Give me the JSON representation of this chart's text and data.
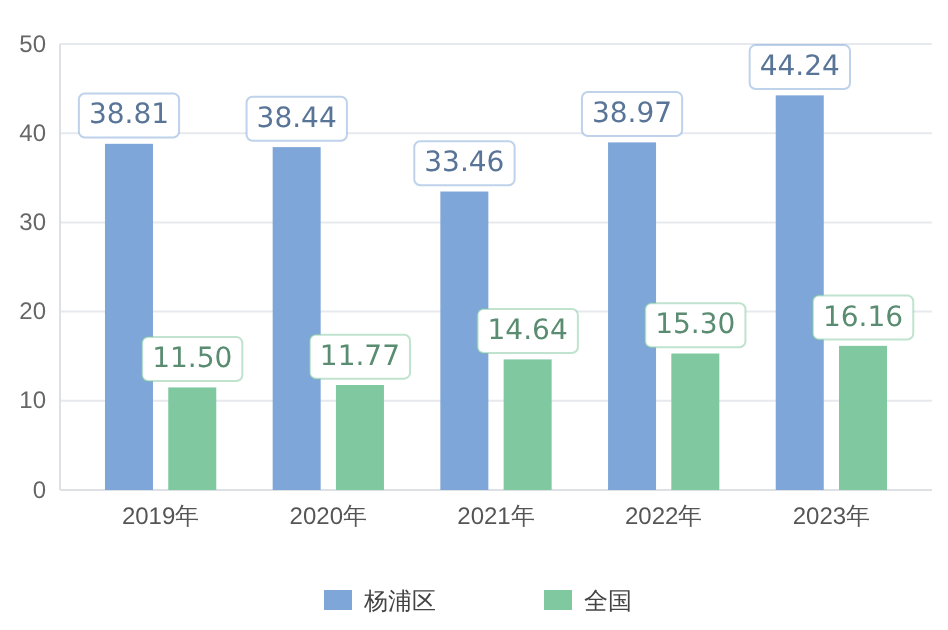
{
  "chart_data": {
    "type": "bar",
    "categories": [
      "2019年",
      "2020年",
      "2021年",
      "2022年",
      "2023年"
    ],
    "series": [
      {
        "name": "杨浦区",
        "color": "#7ea6d8",
        "values": [
          38.81,
          38.44,
          33.46,
          38.97,
          44.24
        ],
        "value_labels": [
          "38.81",
          "38.44",
          "33.46",
          "38.97",
          "44.24"
        ]
      },
      {
        "name": "全国",
        "color": "#7fc8a0",
        "values": [
          11.5,
          11.77,
          14.64,
          15.3,
          16.16
        ],
        "value_labels": [
          "11.50",
          "11.77",
          "14.64",
          "15.30",
          "16.16"
        ]
      }
    ],
    "ylim": [
      0,
      50
    ],
    "yticks": [
      0,
      10,
      20,
      30,
      40,
      50
    ],
    "grid": "y",
    "legend": "bottom"
  }
}
